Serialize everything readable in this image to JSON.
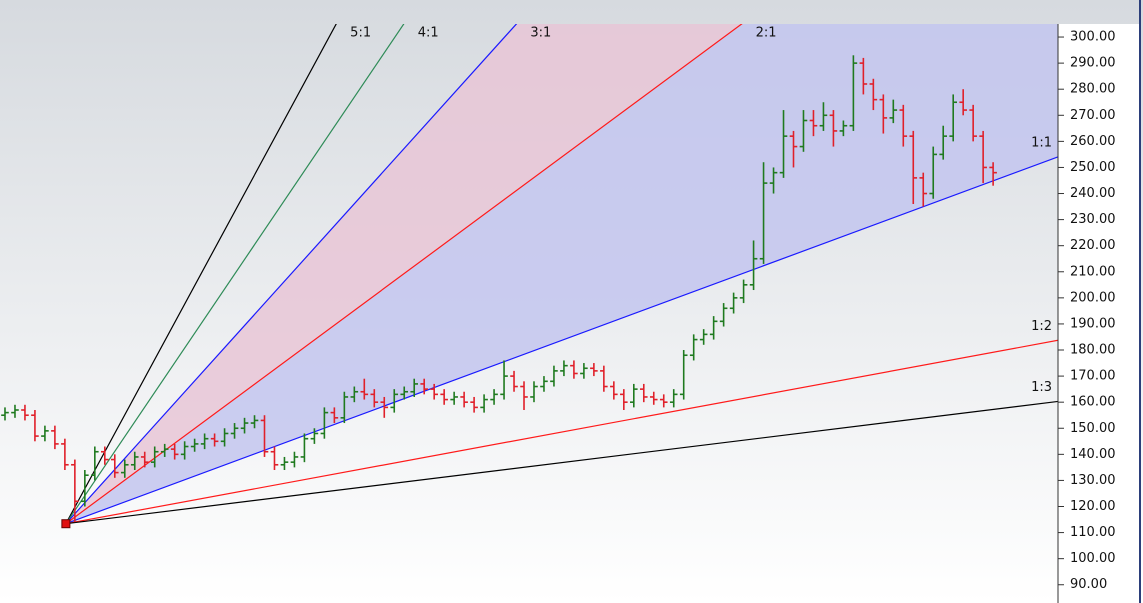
{
  "chart_data": {
    "type": "ohlc",
    "up_color": "#1f7a1f",
    "down_color": "#e0202a",
    "xlim": [
      0,
      106
    ],
    "ylim": [
      83,
      305
    ],
    "yticks": [
      {
        "value": 300,
        "label": "300.00"
      },
      {
        "value": 290,
        "label": "290.00"
      },
      {
        "value": 280,
        "label": "280.00"
      },
      {
        "value": 270,
        "label": "270.00"
      },
      {
        "value": 260,
        "label": "260.00"
      },
      {
        "value": 250,
        "label": "250.00"
      },
      {
        "value": 240,
        "label": "240.00"
      },
      {
        "value": 230,
        "label": "230.00"
      },
      {
        "value": 220,
        "label": "220.00"
      },
      {
        "value": 210,
        "label": "210.00"
      },
      {
        "value": 200,
        "label": "200.00"
      },
      {
        "value": 190,
        "label": "190.00"
      },
      {
        "value": 180,
        "label": "180.00"
      },
      {
        "value": 170,
        "label": "170.00"
      },
      {
        "value": 160,
        "label": "160.00"
      },
      {
        "value": 150,
        "label": "150.00"
      },
      {
        "value": 140,
        "label": "140.00"
      },
      {
        "value": 130,
        "label": "130.00"
      },
      {
        "value": 120,
        "label": "120.00"
      },
      {
        "value": 110,
        "label": "110.00"
      },
      {
        "value": 100,
        "label": "100.00"
      },
      {
        "value": 90,
        "label": "90.00"
      }
    ],
    "ohlc": [
      [
        155,
        158,
        153,
        156
      ],
      [
        156,
        159,
        154,
        157
      ],
      [
        157,
        159,
        153,
        155
      ],
      [
        155,
        157,
        145,
        147
      ],
      [
        147,
        151,
        145,
        149
      ],
      [
        149,
        151,
        142,
        144
      ],
      [
        144,
        146,
        134,
        136
      ],
      [
        136,
        138,
        114,
        122
      ],
      [
        122,
        134,
        120,
        132
      ],
      [
        132,
        143,
        130,
        141
      ],
      [
        141,
        143,
        136,
        138
      ],
      [
        138,
        140,
        131,
        133
      ],
      [
        133,
        138,
        131,
        136
      ],
      [
        136,
        141,
        134,
        139
      ],
      [
        139,
        141,
        135,
        137
      ],
      [
        137,
        143,
        135,
        141
      ],
      [
        141,
        144,
        139,
        142
      ],
      [
        142,
        144,
        138,
        140
      ],
      [
        140,
        145,
        138,
        143
      ],
      [
        143,
        146,
        141,
        144
      ],
      [
        144,
        148,
        142,
        146
      ],
      [
        146,
        148,
        143,
        145
      ],
      [
        145,
        150,
        143,
        148
      ],
      [
        148,
        152,
        146,
        150
      ],
      [
        150,
        154,
        148,
        152
      ],
      [
        152,
        155,
        150,
        153
      ],
      [
        153,
        155,
        139,
        141
      ],
      [
        141,
        143,
        134,
        136
      ],
      [
        136,
        139,
        134,
        137
      ],
      [
        137,
        141,
        135,
        139
      ],
      [
        139,
        148,
        137,
        146
      ],
      [
        146,
        150,
        144,
        148
      ],
      [
        148,
        158,
        146,
        156
      ],
      [
        156,
        158,
        152,
        154
      ],
      [
        154,
        164,
        152,
        162
      ],
      [
        162,
        166,
        160,
        164
      ],
      [
        164,
        169,
        161,
        163
      ],
      [
        163,
        165,
        158,
        160
      ],
      [
        160,
        162,
        154,
        158
      ],
      [
        158,
        165,
        156,
        163
      ],
      [
        163,
        166,
        161,
        164
      ],
      [
        164,
        169,
        162,
        167
      ],
      [
        167,
        169,
        163,
        165
      ],
      [
        165,
        167,
        161,
        163
      ],
      [
        163,
        165,
        159,
        161
      ],
      [
        161,
        164,
        159,
        162
      ],
      [
        162,
        164,
        158,
        160
      ],
      [
        160,
        162,
        156,
        158
      ],
      [
        158,
        163,
        156,
        161
      ],
      [
        161,
        165,
        159,
        163
      ],
      [
        163,
        176,
        161,
        170
      ],
      [
        170,
        172,
        164,
        166
      ],
      [
        166,
        168,
        157,
        162
      ],
      [
        162,
        168,
        160,
        166
      ],
      [
        166,
        170,
        164,
        168
      ],
      [
        168,
        174,
        166,
        172
      ],
      [
        172,
        176,
        170,
        174
      ],
      [
        174,
        176,
        169,
        171
      ],
      [
        171,
        175,
        169,
        173
      ],
      [
        173,
        175,
        170,
        172
      ],
      [
        172,
        174,
        164,
        166
      ],
      [
        166,
        168,
        161,
        163
      ],
      [
        163,
        165,
        157,
        160
      ],
      [
        160,
        167,
        158,
        165
      ],
      [
        165,
        167,
        160,
        162
      ],
      [
        162,
        164,
        159,
        161
      ],
      [
        161,
        163,
        158,
        160
      ],
      [
        160,
        165,
        158,
        163
      ],
      [
        163,
        180,
        161,
        178
      ],
      [
        178,
        186,
        176,
        184
      ],
      [
        184,
        188,
        182,
        186
      ],
      [
        186,
        193,
        184,
        191
      ],
      [
        191,
        198,
        189,
        196
      ],
      [
        196,
        202,
        194,
        200
      ],
      [
        200,
        207,
        198,
        205
      ],
      [
        205,
        222,
        203,
        215
      ],
      [
        215,
        252,
        213,
        244
      ],
      [
        244,
        250,
        240,
        248
      ],
      [
        248,
        272,
        246,
        262
      ],
      [
        262,
        264,
        250,
        258
      ],
      [
        258,
        272,
        256,
        268
      ],
      [
        268,
        272,
        262,
        266
      ],
      [
        266,
        275,
        264,
        270
      ],
      [
        270,
        272,
        258,
        264
      ],
      [
        264,
        268,
        262,
        266
      ],
      [
        266,
        293,
        264,
        290
      ],
      [
        290,
        292,
        278,
        282
      ],
      [
        282,
        284,
        272,
        276
      ],
      [
        276,
        278,
        263,
        269
      ],
      [
        269,
        276,
        267,
        272
      ],
      [
        272,
        274,
        258,
        262
      ],
      [
        262,
        264,
        236,
        246
      ],
      [
        246,
        248,
        235,
        240
      ],
      [
        240,
        258,
        238,
        255
      ],
      [
        255,
        266,
        253,
        262
      ],
      [
        262,
        278,
        260,
        275
      ],
      [
        275,
        280,
        270,
        272
      ],
      [
        272,
        274,
        260,
        262
      ],
      [
        262,
        264,
        244,
        250
      ],
      [
        250,
        252,
        243,
        248
      ]
    ],
    "fan": {
      "origin_x": 6.6,
      "origin_y": 113.4,
      "unit": 1.415,
      "marker_color": "#e01010",
      "lines": [
        {
          "label": "5:1",
          "rise": 5,
          "run": 1,
          "color": "#000000"
        },
        {
          "label": "4:1",
          "rise": 4,
          "run": 1,
          "color": "#2e8b57"
        },
        {
          "label": "3:1",
          "rise": 3,
          "run": 1,
          "color": "#1a1aff"
        },
        {
          "label": "2:1",
          "rise": 2,
          "run": 1,
          "color": "#ff1a1a",
          "fill": "#e8c6d6"
        },
        {
          "label": "1:1",
          "rise": 1,
          "run": 1,
          "color": "#1a1aff",
          "fill": "#c3c6ee"
        },
        {
          "label": "1:2",
          "rise": 1,
          "run": 2,
          "color": "#ff1a1a"
        },
        {
          "label": "1:3",
          "rise": 1,
          "run": 3,
          "color": "#000000"
        }
      ]
    }
  }
}
